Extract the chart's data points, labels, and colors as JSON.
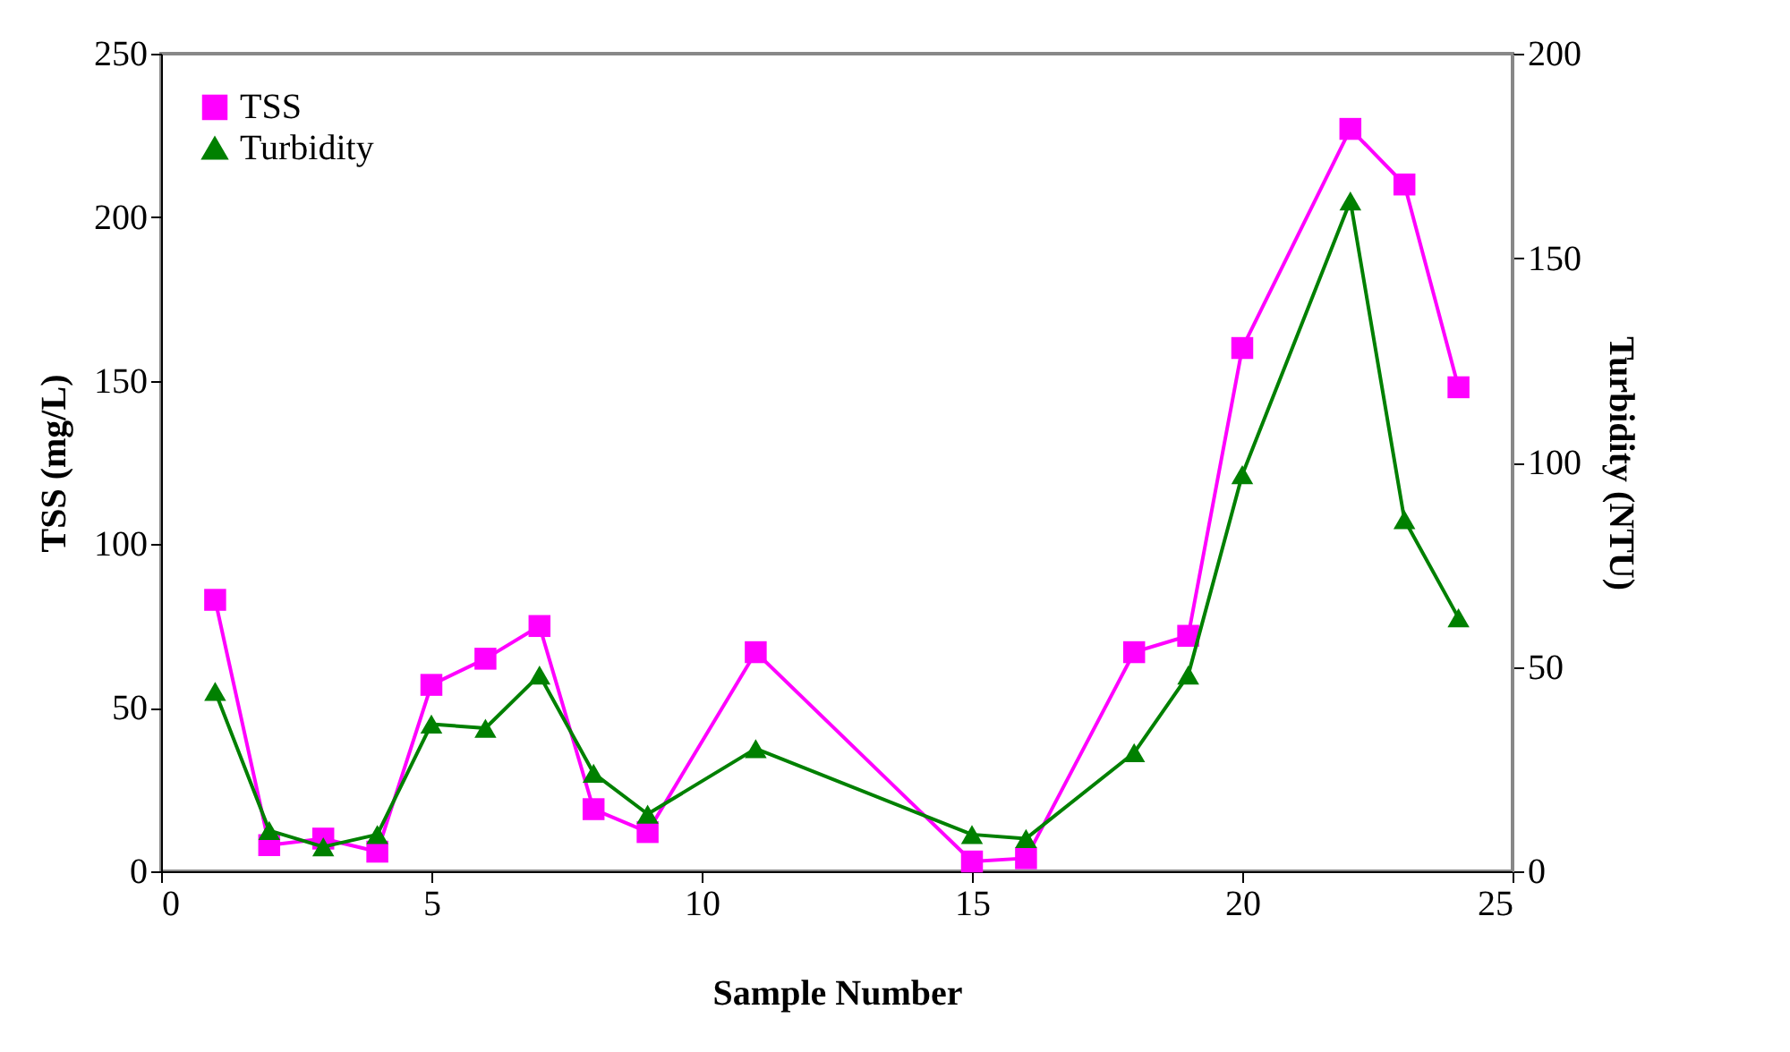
{
  "chart_data": {
    "type": "line",
    "xlabel": "Sample Number",
    "ylabel": "TSS (mg/L)",
    "y2label": "Turbidity (NTU)",
    "xlim": [
      0,
      25
    ],
    "xticks": [
      0,
      5,
      10,
      15,
      20,
      25
    ],
    "ylim": [
      0,
      250
    ],
    "yticks": [
      0,
      50,
      100,
      150,
      200,
      250
    ],
    "y2lim": [
      0,
      200
    ],
    "y2ticks": [
      0,
      50,
      100,
      150,
      200
    ],
    "grid": false,
    "legend": "top left",
    "series": [
      {
        "name": "TSS",
        "color": "#ff00ff",
        "marker": "square",
        "x": [
          1,
          2,
          3,
          4,
          5,
          6,
          7,
          8,
          9,
          11,
          15,
          16,
          18,
          19,
          20,
          22,
          23,
          24
        ],
        "values": [
          83,
          8,
          10,
          6,
          57,
          65,
          75,
          19,
          12,
          67,
          3,
          4,
          67,
          72,
          160,
          227,
          210,
          148
        ]
      },
      {
        "name": "Turbidity",
        "color": "#008000",
        "marker": "triangle",
        "axis": "y2",
        "x": [
          1,
          2,
          3,
          4,
          5,
          6,
          7,
          8,
          9,
          11,
          15,
          16,
          18,
          19,
          20,
          22,
          23,
          24
        ],
        "values": [
          44,
          10,
          6,
          9,
          36,
          35,
          48,
          24,
          14,
          30,
          9,
          8,
          29,
          48,
          97,
          164,
          86,
          62
        ]
      }
    ]
  }
}
